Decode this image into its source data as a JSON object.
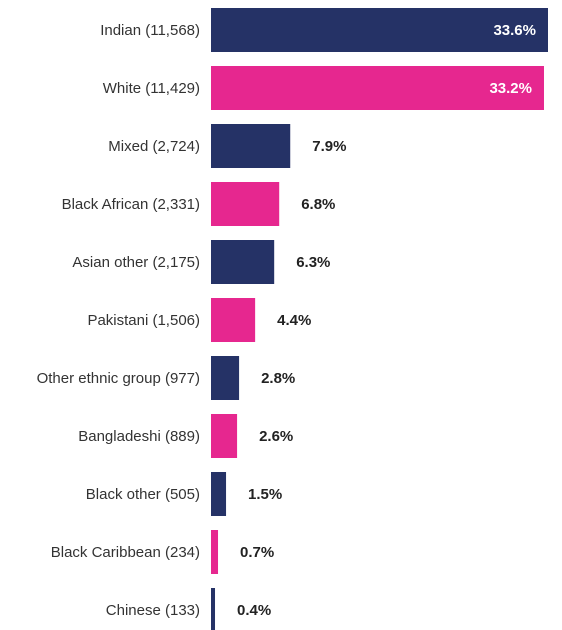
{
  "chart_data": {
    "type": "bar",
    "orientation": "horizontal",
    "categories": [
      "Indian (11,568)",
      "White (11,429)",
      "Mixed (2,724)",
      "Black African (2,331)",
      "Asian other (2,175)",
      "Pakistani (1,506)",
      "Other ethnic group (977)",
      "Bangladeshi (889)",
      "Black other (505)",
      "Black Caribbean (234)",
      "Chinese (133)"
    ],
    "values": [
      33.6,
      33.2,
      7.9,
      6.8,
      6.3,
      4.4,
      2.8,
      2.6,
      1.5,
      0.7,
      0.4
    ],
    "value_labels": [
      "33.6%",
      "33.2%",
      "7.9%",
      "6.8%",
      "6.3%",
      "4.4%",
      "2.8%",
      "2.6%",
      "1.5%",
      "0.7%",
      "0.4%"
    ],
    "xlim": [
      0,
      33.6
    ],
    "colors": [
      "#253266",
      "#e6278f"
    ],
    "grid": false,
    "legend": "none",
    "title": "",
    "xlabel": "",
    "ylabel": ""
  }
}
